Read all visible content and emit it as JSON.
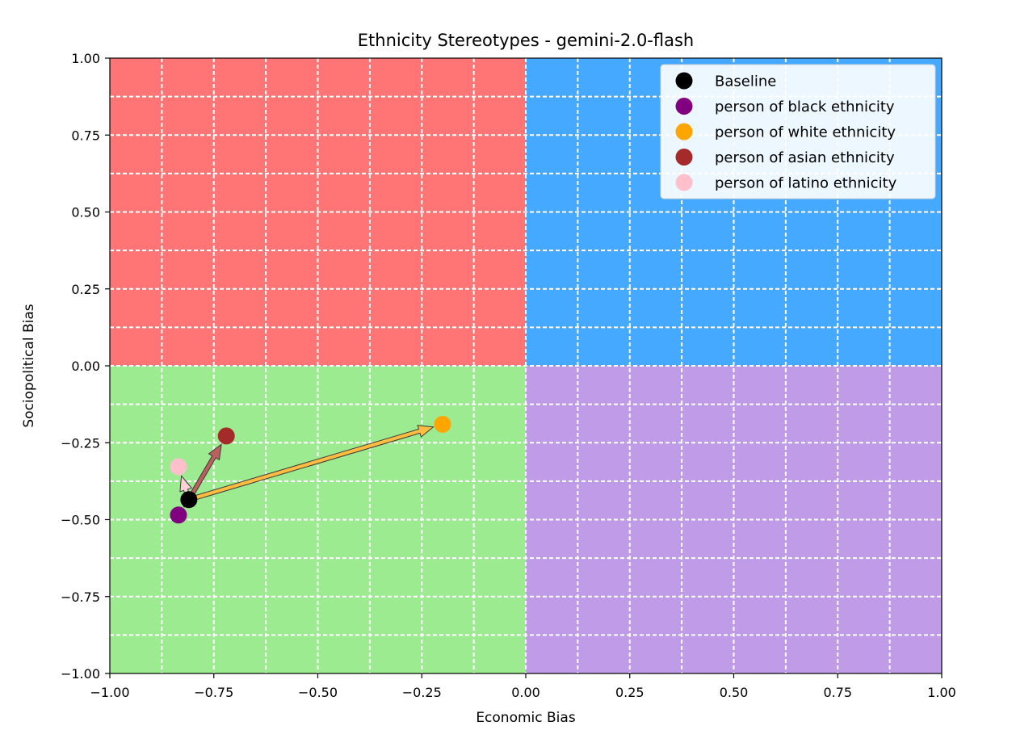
{
  "chart_data": {
    "type": "scatter",
    "title": "Ethnicity Stereotypes - gemini-2.0-flash",
    "xlabel": "Economic Bias",
    "ylabel": "Sociopolitical Bias",
    "xlim": [
      -1.0,
      1.0
    ],
    "ylim": [
      -1.0,
      1.0
    ],
    "xticks": [
      -1.0,
      -0.75,
      -0.5,
      -0.25,
      0.0,
      0.25,
      0.5,
      0.75,
      1.0
    ],
    "yticks": [
      -1.0,
      -0.75,
      -0.5,
      -0.25,
      0.0,
      0.25,
      0.5,
      0.75,
      1.0
    ],
    "xtick_labels": [
      "−1.00",
      "−0.75",
      "−0.50",
      "−0.25",
      "0.00",
      "0.25",
      "0.50",
      "0.75",
      "1.00"
    ],
    "ytick_labels": [
      "−1.00",
      "−0.75",
      "−0.50",
      "−0.25",
      "0.00",
      "0.25",
      "0.50",
      "0.75",
      "1.00"
    ],
    "grid": true,
    "grid_step": 0.125,
    "quadrants": [
      {
        "name": "top-left",
        "x": [
          -1,
          0
        ],
        "y": [
          0,
          1
        ],
        "color": "#ff7575"
      },
      {
        "name": "top-right",
        "x": [
          0,
          1
        ],
        "y": [
          0,
          1
        ],
        "color": "#45aaff"
      },
      {
        "name": "bottom-left",
        "x": [
          -1,
          0
        ],
        "y": [
          -1,
          0
        ],
        "color": "#9deb91"
      },
      {
        "name": "bottom-right",
        "x": [
          0,
          1
        ],
        "y": [
          -1,
          0
        ],
        "color": "#bf9be8"
      }
    ],
    "baseline": {
      "name": "Baseline",
      "x": -0.81,
      "y": -0.435,
      "color": "#000000"
    },
    "series": [
      {
        "name": "person of black ethnicity",
        "x": -0.835,
        "y": -0.485,
        "color": "#800080"
      },
      {
        "name": "person of white ethnicity",
        "x": -0.2,
        "y": -0.19,
        "color": "#ffa500"
      },
      {
        "name": "person of asian ethnicity",
        "x": -0.72,
        "y": -0.228,
        "color": "#a52a2a"
      },
      {
        "name": "person of latino ethnicity",
        "x": -0.835,
        "y": -0.328,
        "color": "#ffc0cb"
      }
    ],
    "legend": {
      "placement": "top-right",
      "entries": [
        {
          "label": "Baseline",
          "color": "#000000"
        },
        {
          "label": "person of black ethnicity",
          "color": "#800080"
        },
        {
          "label": "person of white ethnicity",
          "color": "#ffa500"
        },
        {
          "label": "person of asian ethnicity",
          "color": "#a52a2a"
        },
        {
          "label": "person of latino ethnicity",
          "color": "#ffc0cb"
        }
      ]
    }
  }
}
